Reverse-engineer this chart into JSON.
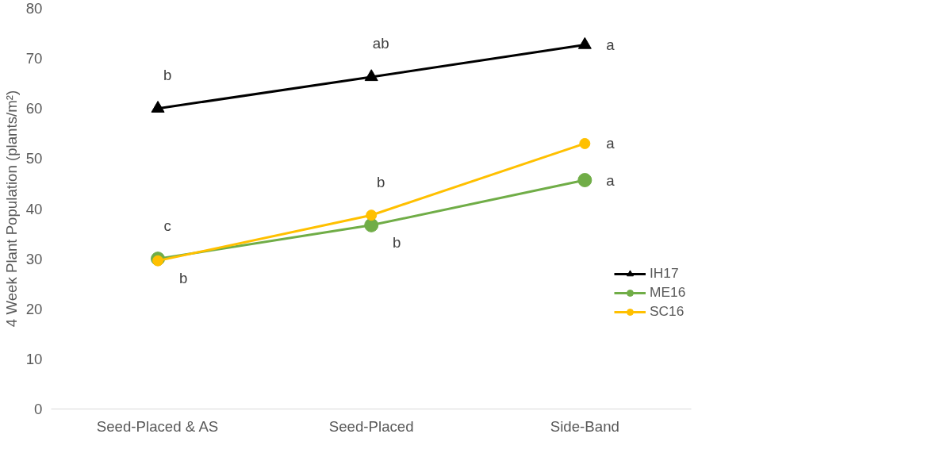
{
  "chart_data": {
    "type": "line",
    "ylabel": "4 Week Plant Population (plants/m²)",
    "categories": [
      "Seed-Placed & AS",
      "Seed-Placed",
      "Side-Band"
    ],
    "series": [
      {
        "name": "IH17",
        "color": "#000000",
        "marker": "triangle",
        "values": [
          60.0,
          66.3,
          72.7
        ]
      },
      {
        "name": "ME16",
        "color": "#70ad47",
        "marker": "circle",
        "values": [
          30.0,
          36.7,
          45.7
        ]
      },
      {
        "name": "SC16",
        "color": "#ffc000",
        "marker": "circle",
        "values": [
          29.6,
          38.7,
          53.0
        ]
      }
    ],
    "ylim": [
      0,
      80
    ],
    "yticks": [
      0,
      10,
      20,
      30,
      40,
      50,
      60,
      70,
      80
    ],
    "grid": false,
    "legend": "right",
    "annotations": [
      {
        "text": "b",
        "x": "Seed-Placed & AS",
        "y": 60.0
      },
      {
        "text": "c",
        "x": "Seed-Placed & AS",
        "y": 30.0
      },
      {
        "text": "b",
        "x": "Seed-Placed & AS",
        "y": 29.6
      },
      {
        "text": "ab",
        "x": "Seed-Placed",
        "y": 66.3
      },
      {
        "text": "b",
        "x": "Seed-Placed",
        "y": 38.7
      },
      {
        "text": "b",
        "x": "Seed-Placed",
        "y": 36.7
      },
      {
        "text": "a",
        "x": "Side-Band",
        "y": 72.7
      },
      {
        "text": "a",
        "x": "Side-Band",
        "y": 53.0
      },
      {
        "text": "a",
        "x": "Side-Band",
        "y": 45.7
      }
    ]
  }
}
